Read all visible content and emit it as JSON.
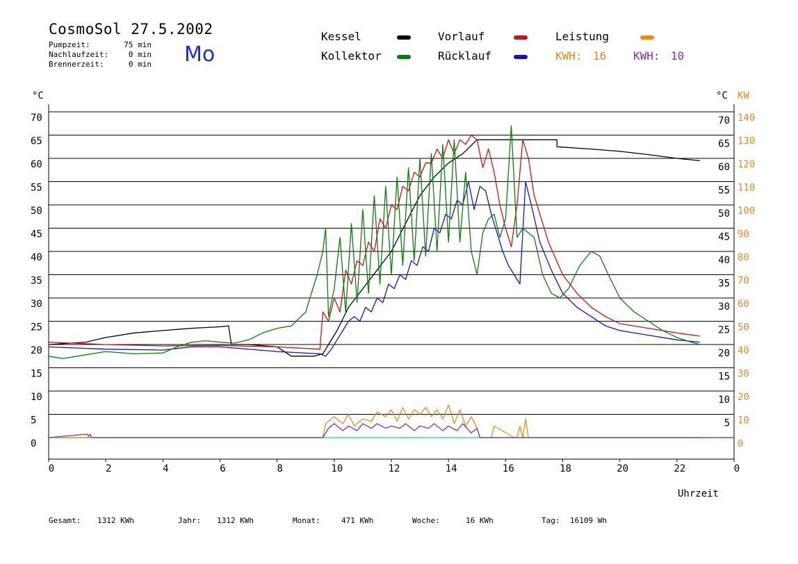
{
  "header": {
    "title": "CosmoSol 27.5.2002",
    "day": "Mo",
    "info": [
      {
        "label": "Pumpzeit:",
        "value": "75 min"
      },
      {
        "label": "Nachlaufzeit:",
        "value": "0 min"
      },
      {
        "label": "Brennerzeit:",
        "value": "0 min"
      }
    ]
  },
  "legend": {
    "kessel": "Kessel",
    "kollektor": "Kollektor",
    "vorlauf": "Vorlauf",
    "ruecklauf": "Rücklauf",
    "leistung": "Leistung",
    "kwh_orange_label": "KWH:",
    "kwh_orange_value": "16",
    "kwh_purple_label": "KWH:",
    "kwh_purple_value": "10"
  },
  "colors": {
    "kessel": "#000000",
    "kollektor": "#0a7d0a",
    "vorlauf": "#cc1111",
    "ruecklauf": "#1111cc",
    "leistung": "#f08a10",
    "purple": "#8030a0",
    "baseline": "#40d0d0"
  },
  "axes": {
    "left_unit": "°C",
    "right_unit": "°C",
    "right_unit2": "KW",
    "xlabel": "Uhrzeit"
  },
  "chart_data": {
    "type": "line",
    "xlim": [
      0,
      24
    ],
    "ylim": [
      0,
      70
    ],
    "y2lim": [
      0,
      140
    ],
    "grid": true,
    "x_ticks": [
      "0",
      "2",
      "4",
      "6",
      "8",
      "10",
      "12",
      "14",
      "16",
      "18",
      "20",
      "22",
      "0"
    ],
    "y_ticks_left": [
      "0",
      "5",
      "10",
      "15",
      "20",
      "25",
      "30",
      "35",
      "40",
      "45",
      "50",
      "55",
      "60",
      "65",
      "70"
    ],
    "y_ticks_right": [
      "",
      "5",
      "10",
      "15",
      "20",
      "25",
      "30",
      "35",
      "40",
      "45",
      "50",
      "55",
      "60",
      "65",
      "70"
    ],
    "y2_ticks": [
      "0",
      "10",
      "20",
      "30",
      "40",
      "50",
      "60",
      "70",
      "80",
      "90",
      "100",
      "110",
      "120",
      "130",
      "140"
    ],
    "series": [
      {
        "name": "Kessel",
        "color": "#000000",
        "x": [
          0,
          1.3,
          2,
          3,
          4,
          5,
          6,
          6.3,
          6.4,
          7,
          8,
          8.5,
          9.3,
          9.6,
          9.8,
          10.1,
          10.5,
          11,
          11.5,
          12,
          12.5,
          13,
          13.5,
          14,
          14.5,
          15,
          15.5,
          16,
          17,
          17.8,
          17.8,
          19,
          20,
          21,
          22,
          22.8
        ],
        "y": [
          20,
          20.5,
          21.5,
          22.5,
          23,
          23.5,
          23.8,
          24,
          20,
          20,
          19.5,
          17.5,
          17.5,
          18,
          20,
          23,
          28,
          32,
          36,
          40,
          46,
          52,
          56,
          59,
          61,
          64,
          64,
          64,
          64,
          64,
          62.5,
          62,
          61.5,
          60.8,
          60,
          59.5
        ]
      },
      {
        "name": "Kollektor",
        "color": "#0a7d0a",
        "x": [
          0,
          0.5,
          1,
          2,
          3,
          4,
          4.5,
          5,
          5.5,
          6,
          6.5,
          7,
          7.5,
          8,
          8.5,
          9,
          9.4,
          9.6,
          9.7,
          9.8,
          10,
          10.2,
          10.4,
          10.6,
          10.8,
          11,
          11.2,
          11.4,
          11.6,
          11.8,
          12,
          12.2,
          12.4,
          12.6,
          12.8,
          13,
          13.2,
          13.4,
          13.6,
          13.8,
          14,
          14.2,
          14.4,
          14.6,
          14.8,
          15,
          15.2,
          15.4,
          15.6,
          15.8,
          16,
          16.2,
          16.4,
          16.6,
          16.8,
          17,
          17.3,
          17.6,
          17.9,
          18.2,
          18.6,
          19,
          19.3,
          19.6,
          20,
          20.5,
          21,
          21.5,
          22,
          22.5,
          22.8
        ],
        "y": [
          17.5,
          17,
          17.5,
          18.5,
          18,
          18.2,
          19.5,
          20.5,
          20.8,
          20.5,
          20.3,
          21,
          22.5,
          23.5,
          24,
          27,
          35,
          40,
          45,
          26,
          32,
          43,
          27,
          46,
          29,
          49,
          31,
          52,
          33,
          54,
          35,
          56,
          37,
          58,
          38,
          60,
          39,
          61,
          40,
          63,
          42,
          64,
          42,
          57,
          40,
          35,
          44,
          47,
          48,
          43,
          47,
          67,
          43,
          45,
          44,
          43,
          35,
          31,
          30,
          32,
          37,
          40,
          39,
          35,
          30,
          27,
          25,
          23,
          21.5,
          20.5,
          20
        ]
      },
      {
        "name": "Vorlauf",
        "color": "#cc1111",
        "x": [
          0,
          2,
          4,
          6,
          8,
          9.5,
          9.6,
          9.8,
          10,
          10.2,
          10.4,
          10.6,
          10.8,
          11,
          11.2,
          11.4,
          11.6,
          11.8,
          12,
          12.2,
          12.4,
          12.6,
          12.8,
          13,
          13.2,
          13.4,
          13.6,
          13.8,
          14,
          14.2,
          14.4,
          14.6,
          14.8,
          15,
          15.2,
          15.4,
          15.6,
          15.8,
          16,
          16.2,
          16.4,
          16.6,
          16.8,
          17,
          17.5,
          18,
          18.5,
          19,
          19.5,
          20,
          21,
          22,
          22.8
        ],
        "y": [
          20.5,
          20,
          19.7,
          19.8,
          19.5,
          19,
          27,
          25,
          30,
          27,
          36,
          33,
          38,
          37,
          42,
          40,
          47,
          45,
          50,
          49,
          54,
          53,
          57,
          56,
          59,
          59,
          62,
          60,
          64,
          61,
          64,
          63,
          65,
          64,
          58,
          62,
          57,
          50,
          45,
          41,
          50,
          64,
          60,
          52,
          42,
          35,
          31,
          28,
          26,
          24.5,
          23.5,
          22.5,
          21.8
        ]
      },
      {
        "name": "Rücklauf",
        "color": "#1111cc",
        "x": [
          0,
          2,
          4,
          5,
          6,
          8,
          9.5,
          9.7,
          9.9,
          10.1,
          10.3,
          10.5,
          10.7,
          10.9,
          11.1,
          11.3,
          11.5,
          11.7,
          11.9,
          12.1,
          12.3,
          12.5,
          12.7,
          12.9,
          13.1,
          13.3,
          13.5,
          13.7,
          13.9,
          14.1,
          14.3,
          14.5,
          14.7,
          14.9,
          15.1,
          15.3,
          15.5,
          15.7,
          15.9,
          16.1,
          16.3,
          16.5,
          16.7,
          16.9,
          17.2,
          17.6,
          18,
          18.5,
          19,
          19.5,
          20,
          21,
          22,
          22.8
        ],
        "y": [
          19.5,
          19,
          18.8,
          19.5,
          19.5,
          18.5,
          18,
          17.5,
          19,
          21,
          23,
          25,
          26,
          25,
          28,
          27,
          30,
          29,
          33,
          32,
          35,
          34,
          38,
          37,
          41,
          40,
          45,
          44,
          48,
          47,
          51,
          50,
          55,
          49,
          54,
          53,
          48,
          44,
          40,
          37,
          35,
          33,
          55,
          50,
          42,
          36,
          31,
          28,
          26,
          24,
          23,
          22,
          21,
          20.5
        ]
      },
      {
        "name": "Leistung",
        "color": "#f08a10",
        "axis": "y2",
        "x": [
          0,
          9.6,
          9.7,
          10,
          10.3,
          10.5,
          10.7,
          11,
          11.3,
          11.5,
          11.8,
          12,
          12.2,
          12.4,
          12.6,
          12.8,
          13,
          13.2,
          13.4,
          13.6,
          13.8,
          14,
          14.2,
          14.4,
          14.6,
          14.8,
          15,
          15.1,
          15.5,
          15.6,
          16.3,
          16.4,
          16.5,
          16.6,
          16.7,
          16.8,
          24
        ],
        "y": [
          0,
          0,
          6,
          9,
          6,
          10,
          5,
          8,
          7,
          11,
          9,
          12,
          7,
          13,
          8,
          12,
          10,
          13,
          9,
          12,
          8,
          14,
          6,
          12,
          5,
          9,
          4,
          0,
          0,
          5,
          0,
          0,
          5,
          0,
          8,
          0,
          0
        ]
      },
      {
        "name": "",
        "color": "#8030a0",
        "axis": "y2",
        "x": [
          0,
          1.35,
          1.4,
          1.45,
          1.5,
          9.6,
          9.8,
          10,
          10.3,
          10.5,
          10.8,
          11,
          11.3,
          11.5,
          11.8,
          12,
          12.3,
          12.5,
          12.8,
          13,
          13.3,
          13.5,
          13.8,
          14,
          14.3,
          14.5,
          14.8,
          15,
          15.1,
          24
        ],
        "y": [
          0,
          1.5,
          0.5,
          1.5,
          0,
          0,
          4,
          6,
          3,
          5,
          3,
          6,
          4,
          6,
          4,
          5,
          4,
          6,
          3,
          5,
          4,
          6,
          3,
          5,
          3,
          6,
          2,
          4,
          0,
          0
        ]
      }
    ]
  },
  "footer": [
    {
      "label": "Gesamt:",
      "value": "1312 KWh"
    },
    {
      "label": "Jahr:",
      "value": "1312 KWh"
    },
    {
      "label": "Monat:",
      "value": "471 KWh"
    },
    {
      "label": "Woche:",
      "value": "16 KWh"
    },
    {
      "label": "Tag:",
      "value": "16109 Wh"
    }
  ]
}
